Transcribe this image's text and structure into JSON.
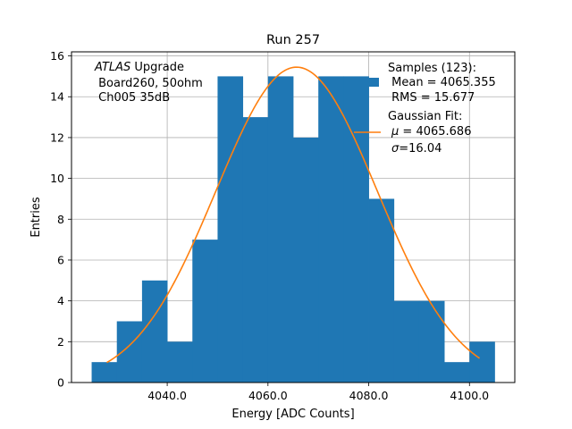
{
  "chart_data": {
    "type": "bar",
    "title": "Run 257",
    "xlabel": "Energy [ADC Counts]",
    "ylabel": "Entries",
    "xlim": [
      4021.0,
      4109.0
    ],
    "ylim": [
      0,
      16.2
    ],
    "grid": true,
    "xticks": [
      4040.0,
      4060.0,
      4080.0,
      4100.0
    ],
    "xtick_labels": [
      "4040.0",
      "4060.0",
      "4080.0",
      "4100.0"
    ],
    "yticks": [
      0,
      2,
      4,
      6,
      8,
      10,
      12,
      14,
      16
    ],
    "ytick_labels": [
      "0",
      "2",
      "4",
      "6",
      "8",
      "10",
      "12",
      "14",
      "16"
    ],
    "bin_width": 5.0,
    "bin_edges_start": 4025.0,
    "values": [
      1,
      3,
      5,
      2,
      7,
      15,
      13,
      15,
      12,
      15,
      15,
      9,
      4,
      4,
      1,
      2
    ],
    "colors": {
      "histogram": "#1f77b4",
      "fit": "#ff7f0e",
      "grid": "#b0b0b0"
    },
    "fit": {
      "type": "gaussian",
      "mu": 4065.686,
      "sigma": 16.04,
      "amplitude": 15.45,
      "x_range": [
        4028.0,
        4102.0
      ]
    },
    "annotation": {
      "line1_italic": "ATLAS",
      "line1_rest": " Upgrade",
      "line2": " Board260, 50ohm",
      "line3": " Ch005 35dB"
    },
    "legend": {
      "placement": "top-right",
      "samples_label": "Samples (123):",
      "samples_mean": " Mean = 4065.355",
      "samples_rms": " RMS = 15.677",
      "fit_label": "Gaussian Fit:",
      "fit_mu_symbol": "μ",
      "fit_mu_value": " = 4065.686",
      "fit_sigma_symbol": "σ",
      "fit_sigma_value": "=16.04"
    }
  }
}
